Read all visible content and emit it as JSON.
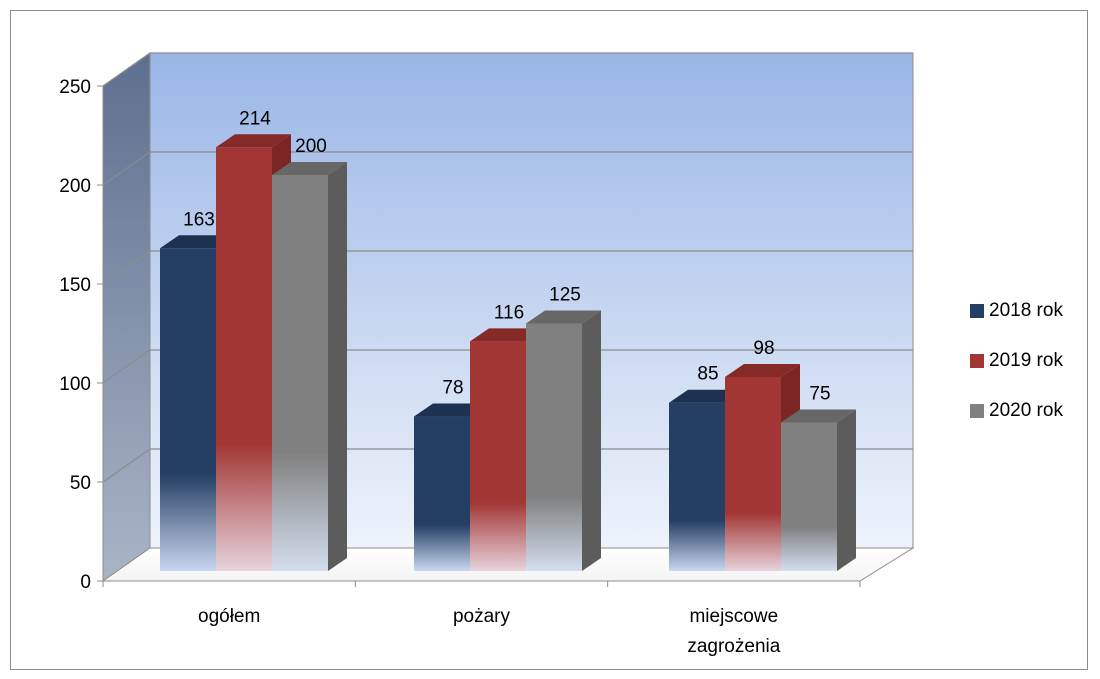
{
  "chart_data": {
    "type": "bar",
    "title": "",
    "xlabel": "",
    "ylabel": "",
    "categories": [
      "ogółem",
      "pożary",
      "miejscowe zagrożenia"
    ],
    "series": [
      {
        "name": "2018 rok",
        "values": [
          163,
          78,
          85
        ],
        "color": "#243f63",
        "side_color": "#1a2f4a",
        "top_color": "#1c3250"
      },
      {
        "name": "2019 rok",
        "values": [
          214,
          116,
          98
        ],
        "color": "#a23634",
        "side_color": "#7a2624",
        "top_color": "#862a28"
      },
      {
        "name": "2020 rok",
        "values": [
          200,
          125,
          75
        ],
        "color": "#808080",
        "side_color": "#5c5c5c",
        "top_color": "#676767"
      }
    ],
    "ylim": [
      0,
      250
    ],
    "yticks": [
      0,
      50,
      100,
      150,
      200,
      250
    ],
    "grid": true,
    "legend_position": "right",
    "wall_color_top": "#9ab6e6",
    "wall_color_bottom": "#e8eef9",
    "side_wall_color": "#6a7e9e"
  }
}
